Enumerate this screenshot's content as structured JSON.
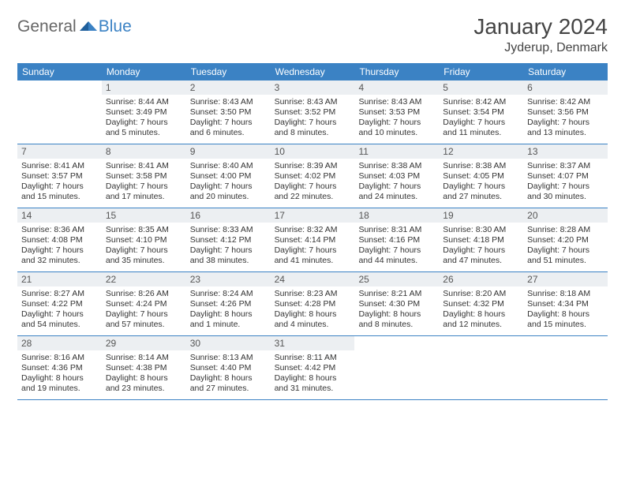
{
  "brand": {
    "part1": "General",
    "part2": "Blue"
  },
  "header": {
    "month_title": "January 2024",
    "location": "Jyderup, Denmark"
  },
  "colors": {
    "accent": "#3b82c4",
    "band": "#eceff2",
    "text": "#333333",
    "header_text": "#ffffff"
  },
  "day_names": [
    "Sunday",
    "Monday",
    "Tuesday",
    "Wednesday",
    "Thursday",
    "Friday",
    "Saturday"
  ],
  "weeks": [
    [
      {
        "n": "",
        "sr": "",
        "ss": "",
        "dl1": "",
        "dl2": ""
      },
      {
        "n": "1",
        "sr": "Sunrise: 8:44 AM",
        "ss": "Sunset: 3:49 PM",
        "dl1": "Daylight: 7 hours",
        "dl2": "and 5 minutes."
      },
      {
        "n": "2",
        "sr": "Sunrise: 8:43 AM",
        "ss": "Sunset: 3:50 PM",
        "dl1": "Daylight: 7 hours",
        "dl2": "and 6 minutes."
      },
      {
        "n": "3",
        "sr": "Sunrise: 8:43 AM",
        "ss": "Sunset: 3:52 PM",
        "dl1": "Daylight: 7 hours",
        "dl2": "and 8 minutes."
      },
      {
        "n": "4",
        "sr": "Sunrise: 8:43 AM",
        "ss": "Sunset: 3:53 PM",
        "dl1": "Daylight: 7 hours",
        "dl2": "and 10 minutes."
      },
      {
        "n": "5",
        "sr": "Sunrise: 8:42 AM",
        "ss": "Sunset: 3:54 PM",
        "dl1": "Daylight: 7 hours",
        "dl2": "and 11 minutes."
      },
      {
        "n": "6",
        "sr": "Sunrise: 8:42 AM",
        "ss": "Sunset: 3:56 PM",
        "dl1": "Daylight: 7 hours",
        "dl2": "and 13 minutes."
      }
    ],
    [
      {
        "n": "7",
        "sr": "Sunrise: 8:41 AM",
        "ss": "Sunset: 3:57 PM",
        "dl1": "Daylight: 7 hours",
        "dl2": "and 15 minutes."
      },
      {
        "n": "8",
        "sr": "Sunrise: 8:41 AM",
        "ss": "Sunset: 3:58 PM",
        "dl1": "Daylight: 7 hours",
        "dl2": "and 17 minutes."
      },
      {
        "n": "9",
        "sr": "Sunrise: 8:40 AM",
        "ss": "Sunset: 4:00 PM",
        "dl1": "Daylight: 7 hours",
        "dl2": "and 20 minutes."
      },
      {
        "n": "10",
        "sr": "Sunrise: 8:39 AM",
        "ss": "Sunset: 4:02 PM",
        "dl1": "Daylight: 7 hours",
        "dl2": "and 22 minutes."
      },
      {
        "n": "11",
        "sr": "Sunrise: 8:38 AM",
        "ss": "Sunset: 4:03 PM",
        "dl1": "Daylight: 7 hours",
        "dl2": "and 24 minutes."
      },
      {
        "n": "12",
        "sr": "Sunrise: 8:38 AM",
        "ss": "Sunset: 4:05 PM",
        "dl1": "Daylight: 7 hours",
        "dl2": "and 27 minutes."
      },
      {
        "n": "13",
        "sr": "Sunrise: 8:37 AM",
        "ss": "Sunset: 4:07 PM",
        "dl1": "Daylight: 7 hours",
        "dl2": "and 30 minutes."
      }
    ],
    [
      {
        "n": "14",
        "sr": "Sunrise: 8:36 AM",
        "ss": "Sunset: 4:08 PM",
        "dl1": "Daylight: 7 hours",
        "dl2": "and 32 minutes."
      },
      {
        "n": "15",
        "sr": "Sunrise: 8:35 AM",
        "ss": "Sunset: 4:10 PM",
        "dl1": "Daylight: 7 hours",
        "dl2": "and 35 minutes."
      },
      {
        "n": "16",
        "sr": "Sunrise: 8:33 AM",
        "ss": "Sunset: 4:12 PM",
        "dl1": "Daylight: 7 hours",
        "dl2": "and 38 minutes."
      },
      {
        "n": "17",
        "sr": "Sunrise: 8:32 AM",
        "ss": "Sunset: 4:14 PM",
        "dl1": "Daylight: 7 hours",
        "dl2": "and 41 minutes."
      },
      {
        "n": "18",
        "sr": "Sunrise: 8:31 AM",
        "ss": "Sunset: 4:16 PM",
        "dl1": "Daylight: 7 hours",
        "dl2": "and 44 minutes."
      },
      {
        "n": "19",
        "sr": "Sunrise: 8:30 AM",
        "ss": "Sunset: 4:18 PM",
        "dl1": "Daylight: 7 hours",
        "dl2": "and 47 minutes."
      },
      {
        "n": "20",
        "sr": "Sunrise: 8:28 AM",
        "ss": "Sunset: 4:20 PM",
        "dl1": "Daylight: 7 hours",
        "dl2": "and 51 minutes."
      }
    ],
    [
      {
        "n": "21",
        "sr": "Sunrise: 8:27 AM",
        "ss": "Sunset: 4:22 PM",
        "dl1": "Daylight: 7 hours",
        "dl2": "and 54 minutes."
      },
      {
        "n": "22",
        "sr": "Sunrise: 8:26 AM",
        "ss": "Sunset: 4:24 PM",
        "dl1": "Daylight: 7 hours",
        "dl2": "and 57 minutes."
      },
      {
        "n": "23",
        "sr": "Sunrise: 8:24 AM",
        "ss": "Sunset: 4:26 PM",
        "dl1": "Daylight: 8 hours",
        "dl2": "and 1 minute."
      },
      {
        "n": "24",
        "sr": "Sunrise: 8:23 AM",
        "ss": "Sunset: 4:28 PM",
        "dl1": "Daylight: 8 hours",
        "dl2": "and 4 minutes."
      },
      {
        "n": "25",
        "sr": "Sunrise: 8:21 AM",
        "ss": "Sunset: 4:30 PM",
        "dl1": "Daylight: 8 hours",
        "dl2": "and 8 minutes."
      },
      {
        "n": "26",
        "sr": "Sunrise: 8:20 AM",
        "ss": "Sunset: 4:32 PM",
        "dl1": "Daylight: 8 hours",
        "dl2": "and 12 minutes."
      },
      {
        "n": "27",
        "sr": "Sunrise: 8:18 AM",
        "ss": "Sunset: 4:34 PM",
        "dl1": "Daylight: 8 hours",
        "dl2": "and 15 minutes."
      }
    ],
    [
      {
        "n": "28",
        "sr": "Sunrise: 8:16 AM",
        "ss": "Sunset: 4:36 PM",
        "dl1": "Daylight: 8 hours",
        "dl2": "and 19 minutes."
      },
      {
        "n": "29",
        "sr": "Sunrise: 8:14 AM",
        "ss": "Sunset: 4:38 PM",
        "dl1": "Daylight: 8 hours",
        "dl2": "and 23 minutes."
      },
      {
        "n": "30",
        "sr": "Sunrise: 8:13 AM",
        "ss": "Sunset: 4:40 PM",
        "dl1": "Daylight: 8 hours",
        "dl2": "and 27 minutes."
      },
      {
        "n": "31",
        "sr": "Sunrise: 8:11 AM",
        "ss": "Sunset: 4:42 PM",
        "dl1": "Daylight: 8 hours",
        "dl2": "and 31 minutes."
      },
      {
        "n": "",
        "sr": "",
        "ss": "",
        "dl1": "",
        "dl2": ""
      },
      {
        "n": "",
        "sr": "",
        "ss": "",
        "dl1": "",
        "dl2": ""
      },
      {
        "n": "",
        "sr": "",
        "ss": "",
        "dl1": "",
        "dl2": ""
      }
    ]
  ]
}
